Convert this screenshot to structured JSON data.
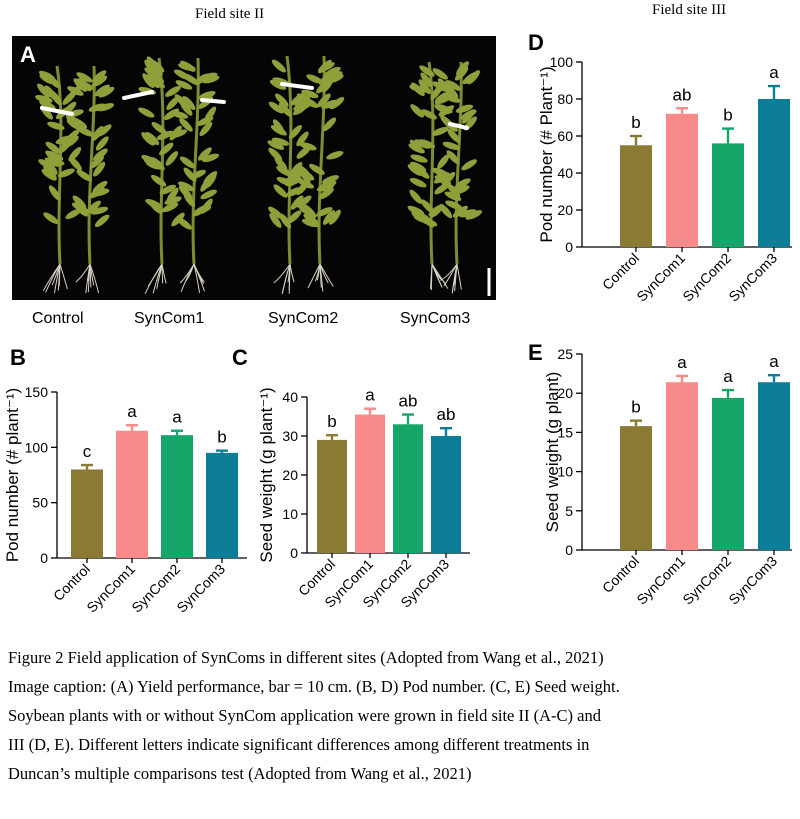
{
  "site_titles": {
    "site2": "Field site II",
    "site3": "Field site III"
  },
  "photo": {
    "letter": "A",
    "labels": [
      "Control",
      "SynCom1",
      "SynCom2",
      "SynCom3"
    ],
    "colors": {
      "background": "#050505",
      "plant": "#7f8d32",
      "pod": "#8fa03a",
      "root": "#d9d2c2"
    }
  },
  "panels": {
    "B": "B",
    "C": "C",
    "D": "D",
    "E": "E"
  },
  "caption": {
    "line1": "Figure 2 Field application of SynComs in different sites (Adopted from Wang et al., 2021)",
    "line2": "Image caption: (A) Yield performance, bar = 10 cm. (B, D) Pod number. (C, E) Seed weight.",
    "line3": "Soybean plants with or without SynCom application were grown in field site II (A-C) and",
    "line4": "III (D, E). Different letters indicate significant differences among different treatments in",
    "line5": "Duncan’s multiple comparisons test (Adopted from Wang et al., 2021)"
  },
  "chart_data": [
    {
      "id": "B",
      "type": "bar",
      "categories": [
        "Control",
        "SynCom1",
        "SynCom2",
        "SynCom3"
      ],
      "values": [
        80,
        115,
        111,
        95
      ],
      "errors": [
        4,
        5,
        4,
        2
      ],
      "significance": [
        "c",
        "a",
        "a",
        "b"
      ],
      "ylabel": "Pod number (# plant⁻¹)",
      "ylim": [
        0,
        150
      ],
      "yticks": [
        0,
        50,
        100,
        150
      ],
      "colors": [
        "#8b7a33",
        "#f88a8a",
        "#17a66a",
        "#0d7e98"
      ]
    },
    {
      "id": "C",
      "type": "bar",
      "categories": [
        "Control",
        "SynCom1",
        "SynCom2",
        "SynCom3"
      ],
      "values": [
        29,
        35.5,
        33,
        30
      ],
      "errors": [
        1.2,
        1.5,
        2.5,
        2
      ],
      "significance": [
        "b",
        "a",
        "ab",
        "ab"
      ],
      "ylabel": "Seed weight (g plant⁻¹)",
      "ylim": [
        0,
        40
      ],
      "yticks": [
        0,
        10,
        20,
        30,
        40
      ],
      "colors": [
        "#8b7a33",
        "#f88a8a",
        "#17a66a",
        "#0d7e98"
      ]
    },
    {
      "id": "D",
      "type": "bar",
      "categories": [
        "Control",
        "SynCom1",
        "SynCom2",
        "SynCom3"
      ],
      "values": [
        55,
        72,
        56,
        80
      ],
      "errors": [
        5,
        3,
        8,
        7
      ],
      "significance": [
        "b",
        "ab",
        "b",
        "a"
      ],
      "ylabel": "Pod number (# Plant⁻¹)",
      "ylim": [
        0,
        100
      ],
      "yticks": [
        0,
        20,
        40,
        60,
        80,
        100
      ],
      "colors": [
        "#8b7a33",
        "#f88a8a",
        "#17a66a",
        "#0d7e98"
      ]
    },
    {
      "id": "E",
      "type": "bar",
      "categories": [
        "Control",
        "SynCom1",
        "SynCom2",
        "SynCom3"
      ],
      "values": [
        15.8,
        21.4,
        19.4,
        21.4
      ],
      "errors": [
        0.7,
        0.8,
        1,
        0.9
      ],
      "significance": [
        "b",
        "a",
        "a",
        "a"
      ],
      "ylabel": "Seed weight (g plant)",
      "ylim": [
        0,
        25
      ],
      "yticks": [
        0,
        5,
        10,
        15,
        20,
        25
      ],
      "colors": [
        "#8b7a33",
        "#f88a8a",
        "#17a66a",
        "#0d7e98"
      ]
    }
  ]
}
